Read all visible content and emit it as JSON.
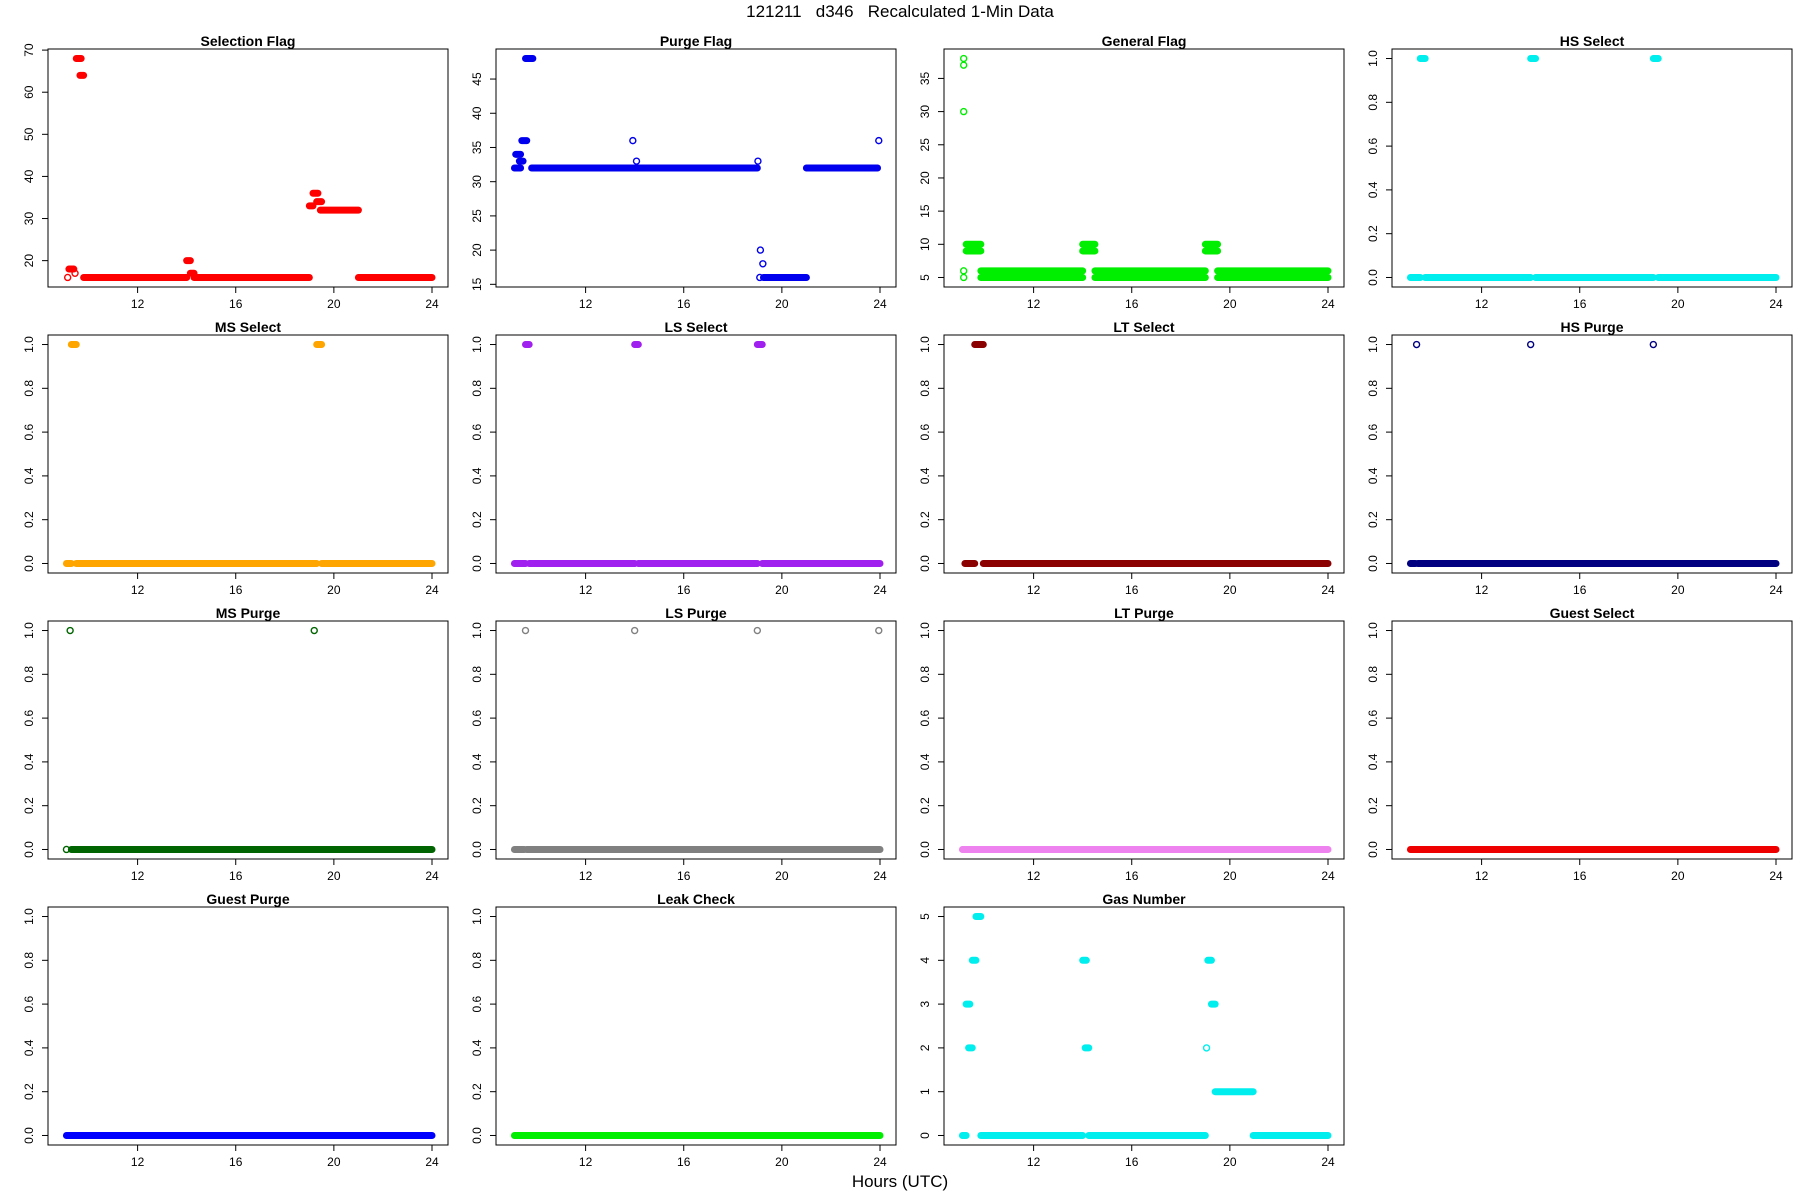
{
  "title": "121211   d346   Recalculated 1-Min Data",
  "xlabel": "Hours (UTC)",
  "chart_data": [
    {
      "type": "scatter",
      "title": "Selection Flag",
      "color": "#ff0000",
      "ylim": [
        16,
        68
      ],
      "yticks": [
        20,
        30,
        40,
        50,
        60,
        70
      ],
      "xlim": [
        9,
        24
      ],
      "xticks": [
        12,
        16,
        20,
        24
      ],
      "segments": [
        [
          9.1,
          9.2,
          16
        ],
        [
          9.2,
          9.4,
          18
        ],
        [
          9.4,
          9.5,
          17
        ],
        [
          9.5,
          9.7,
          68
        ],
        [
          9.65,
          9.8,
          64
        ],
        [
          9.8,
          14.0,
          16
        ],
        [
          14.0,
          14.15,
          20
        ],
        [
          14.15,
          14.3,
          17
        ],
        [
          14.3,
          19.0,
          16
        ],
        [
          19.0,
          19.15,
          33
        ],
        [
          19.15,
          19.35,
          36
        ],
        [
          19.3,
          19.5,
          34
        ],
        [
          19.45,
          21.0,
          32
        ],
        [
          21.0,
          24.0,
          16
        ]
      ]
    },
    {
      "type": "scatter",
      "title": "Purge Flag",
      "color": "#0000ee",
      "ylim": [
        16,
        48
      ],
      "yticks": [
        15,
        20,
        25,
        30,
        35,
        40,
        45
      ],
      "xlim": [
        9,
        24
      ],
      "xticks": [
        12,
        16,
        20,
        24
      ],
      "segments": [
        [
          9.1,
          9.35,
          32
        ],
        [
          9.15,
          9.35,
          34
        ],
        [
          9.3,
          9.45,
          33
        ],
        [
          9.4,
          9.6,
          36
        ],
        [
          9.55,
          9.85,
          48
        ],
        [
          9.8,
          13.9,
          32
        ],
        [
          13.9,
          13.95,
          36
        ],
        [
          13.95,
          14.1,
          32
        ],
        [
          14.05,
          14.1,
          33
        ],
        [
          14.1,
          19.0,
          32
        ],
        [
          19.0,
          19.05,
          33
        ],
        [
          19.05,
          19.15,
          16
        ],
        [
          19.1,
          19.15,
          20
        ],
        [
          19.2,
          19.25,
          18
        ],
        [
          19.25,
          21.0,
          16
        ],
        [
          21.0,
          23.9,
          32
        ],
        [
          23.95,
          23.95,
          36
        ]
      ]
    },
    {
      "type": "scatter",
      "title": "General Flag",
      "color": "#00ee00",
      "ylim": [
        5,
        38
      ],
      "yticks": [
        5,
        10,
        15,
        20,
        25,
        30,
        35
      ],
      "xlim": [
        9,
        24
      ],
      "xticks": [
        12,
        16,
        20,
        24
      ],
      "segments": [
        [
          9.15,
          9.15,
          38
        ],
        [
          9.15,
          9.15,
          37
        ],
        [
          9.15,
          9.15,
          30
        ],
        [
          9.15,
          9.15,
          6
        ],
        [
          9.15,
          9.15,
          5
        ],
        [
          9.25,
          9.85,
          10
        ],
        [
          9.25,
          9.85,
          9
        ],
        [
          9.85,
          14.0,
          6
        ],
        [
          9.85,
          14.0,
          5
        ],
        [
          14.0,
          14.5,
          10
        ],
        [
          14.0,
          14.5,
          9
        ],
        [
          14.5,
          19.0,
          6
        ],
        [
          14.5,
          19.0,
          5
        ],
        [
          19.0,
          19.5,
          10
        ],
        [
          19.0,
          19.5,
          9
        ],
        [
          19.5,
          24.0,
          6
        ],
        [
          19.5,
          24.0,
          5
        ]
      ]
    },
    {
      "type": "scatter",
      "title": "HS Select",
      "color": "#00eeee",
      "ylim": [
        0,
        1
      ],
      "yticks": [
        0.0,
        0.2,
        0.4,
        0.6,
        0.8,
        1.0
      ],
      "xlim": [
        9,
        24
      ],
      "xticks": [
        12,
        16,
        20,
        24
      ],
      "segments": [
        [
          9.1,
          9.5,
          0
        ],
        [
          9.5,
          9.7,
          1
        ],
        [
          9.7,
          14.0,
          0
        ],
        [
          14.0,
          14.2,
          1
        ],
        [
          14.2,
          19.0,
          0
        ],
        [
          19.0,
          19.2,
          1
        ],
        [
          19.2,
          24.0,
          0
        ]
      ]
    },
    {
      "type": "scatter",
      "title": "MS Select",
      "color": "#ffa500",
      "ylim": [
        0,
        1
      ],
      "yticks": [
        0.0,
        0.2,
        0.4,
        0.6,
        0.8,
        1.0
      ],
      "xlim": [
        9,
        24
      ],
      "xticks": [
        12,
        16,
        20,
        24
      ],
      "segments": [
        [
          9.1,
          9.3,
          0
        ],
        [
          9.3,
          9.5,
          1
        ],
        [
          9.5,
          19.3,
          0
        ],
        [
          19.3,
          19.5,
          1
        ],
        [
          19.5,
          24.0,
          0
        ]
      ]
    },
    {
      "type": "scatter",
      "title": "LS Select",
      "color": "#a020f0",
      "ylim": [
        0,
        1
      ],
      "yticks": [
        0.0,
        0.2,
        0.4,
        0.6,
        0.8,
        1.0
      ],
      "xlim": [
        9,
        24
      ],
      "xticks": [
        12,
        16,
        20,
        24
      ],
      "segments": [
        [
          9.1,
          9.55,
          0
        ],
        [
          9.55,
          9.7,
          1
        ],
        [
          9.7,
          14.0,
          0
        ],
        [
          14.0,
          14.15,
          1
        ],
        [
          14.15,
          19.0,
          0
        ],
        [
          19.0,
          19.2,
          1
        ],
        [
          19.2,
          24.0,
          0
        ]
      ]
    },
    {
      "type": "scatter",
      "title": "LT Select",
      "color": "#8b0000",
      "ylim": [
        0,
        1
      ],
      "yticks": [
        0.0,
        0.2,
        0.4,
        0.6,
        0.8,
        1.0
      ],
      "xlim": [
        9,
        24
      ],
      "xticks": [
        12,
        16,
        20,
        24
      ],
      "segments": [
        [
          9.2,
          9.6,
          0
        ],
        [
          9.6,
          9.95,
          1
        ],
        [
          9.95,
          24.0,
          0
        ]
      ]
    },
    {
      "type": "scatter",
      "title": "HS Purge",
      "color": "#000080",
      "ylim": [
        0,
        1
      ],
      "yticks": [
        0.0,
        0.2,
        0.4,
        0.6,
        0.8,
        1.0
      ],
      "xlim": [
        9,
        24
      ],
      "xticks": [
        12,
        16,
        20,
        24
      ],
      "segments": [
        [
          9.1,
          9.3,
          0
        ],
        [
          9.3,
          9.4,
          1
        ],
        [
          9.4,
          24.0,
          0
        ],
        [
          14.0,
          14.0,
          1
        ],
        [
          19.0,
          19.0,
          1
        ]
      ]
    },
    {
      "type": "scatter",
      "title": "MS Purge",
      "color": "#006400",
      "ylim": [
        0,
        1
      ],
      "yticks": [
        0.0,
        0.2,
        0.4,
        0.6,
        0.8,
        1.0
      ],
      "xlim": [
        9,
        24
      ],
      "xticks": [
        12,
        16,
        20,
        24
      ],
      "segments": [
        [
          9.1,
          9.1,
          0
        ],
        [
          9.2,
          9.3,
          1
        ],
        [
          9.3,
          24.0,
          0
        ],
        [
          19.2,
          19.2,
          1
        ]
      ]
    },
    {
      "type": "scatter",
      "title": "LS Purge",
      "color": "#808080",
      "ylim": [
        0,
        1
      ],
      "yticks": [
        0.0,
        0.2,
        0.4,
        0.6,
        0.8,
        1.0
      ],
      "xlim": [
        9,
        24
      ],
      "xticks": [
        12,
        16,
        20,
        24
      ],
      "segments": [
        [
          9.1,
          9.5,
          0
        ],
        [
          9.5,
          9.6,
          1
        ],
        [
          9.6,
          24.0,
          0
        ],
        [
          14.0,
          14.0,
          1
        ],
        [
          19.0,
          19.0,
          1
        ],
        [
          23.95,
          23.95,
          1
        ]
      ]
    },
    {
      "type": "scatter",
      "title": "LT Purge",
      "color": "#ee82ee",
      "ylim": [
        0,
        1
      ],
      "yticks": [
        0.0,
        0.2,
        0.4,
        0.6,
        0.8,
        1.0
      ],
      "xlim": [
        9,
        24
      ],
      "xticks": [
        12,
        16,
        20,
        24
      ],
      "segments": [
        [
          9.1,
          24.0,
          0
        ]
      ]
    },
    {
      "type": "scatter",
      "title": "Guest Select",
      "color": "#ee0000",
      "ylim": [
        0,
        1
      ],
      "yticks": [
        0.0,
        0.2,
        0.4,
        0.6,
        0.8,
        1.0
      ],
      "xlim": [
        9,
        24
      ],
      "xticks": [
        12,
        16,
        20,
        24
      ],
      "segments": [
        [
          9.1,
          24.0,
          0
        ]
      ]
    },
    {
      "type": "scatter",
      "title": "Guest Purge",
      "color": "#0000ff",
      "ylim": [
        0,
        1
      ],
      "yticks": [
        0.0,
        0.2,
        0.4,
        0.6,
        0.8,
        1.0
      ],
      "xlim": [
        9,
        24
      ],
      "xticks": [
        12,
        16,
        20,
        24
      ],
      "segments": [
        [
          9.1,
          24.0,
          0
        ]
      ]
    },
    {
      "type": "scatter",
      "title": "Leak Check",
      "color": "#00ee00",
      "ylim": [
        0,
        1
      ],
      "yticks": [
        0.0,
        0.2,
        0.4,
        0.6,
        0.8,
        1.0
      ],
      "xlim": [
        9,
        24
      ],
      "xticks": [
        12,
        16,
        20,
        24
      ],
      "segments": [
        [
          9.1,
          24.0,
          0
        ]
      ]
    },
    {
      "type": "scatter",
      "title": "Gas Number",
      "color": "#00eeee",
      "ylim": [
        0,
        5
      ],
      "yticks": [
        0,
        1,
        2,
        3,
        4,
        5
      ],
      "xlim": [
        9,
        24
      ],
      "xticks": [
        12,
        16,
        20,
        24
      ],
      "segments": [
        [
          9.1,
          9.25,
          0
        ],
        [
          9.25,
          9.4,
          3
        ],
        [
          9.35,
          9.5,
          2
        ],
        [
          9.5,
          9.65,
          4
        ],
        [
          9.65,
          9.85,
          5
        ],
        [
          9.85,
          14.0,
          0
        ],
        [
          14.0,
          14.15,
          4
        ],
        [
          14.1,
          14.25,
          2
        ],
        [
          14.25,
          19.0,
          0
        ],
        [
          19.0,
          19.1,
          2
        ],
        [
          19.1,
          19.25,
          4
        ],
        [
          19.25,
          19.4,
          3
        ],
        [
          19.4,
          20.95,
          1
        ],
        [
          20.95,
          24.0,
          0
        ]
      ]
    }
  ]
}
